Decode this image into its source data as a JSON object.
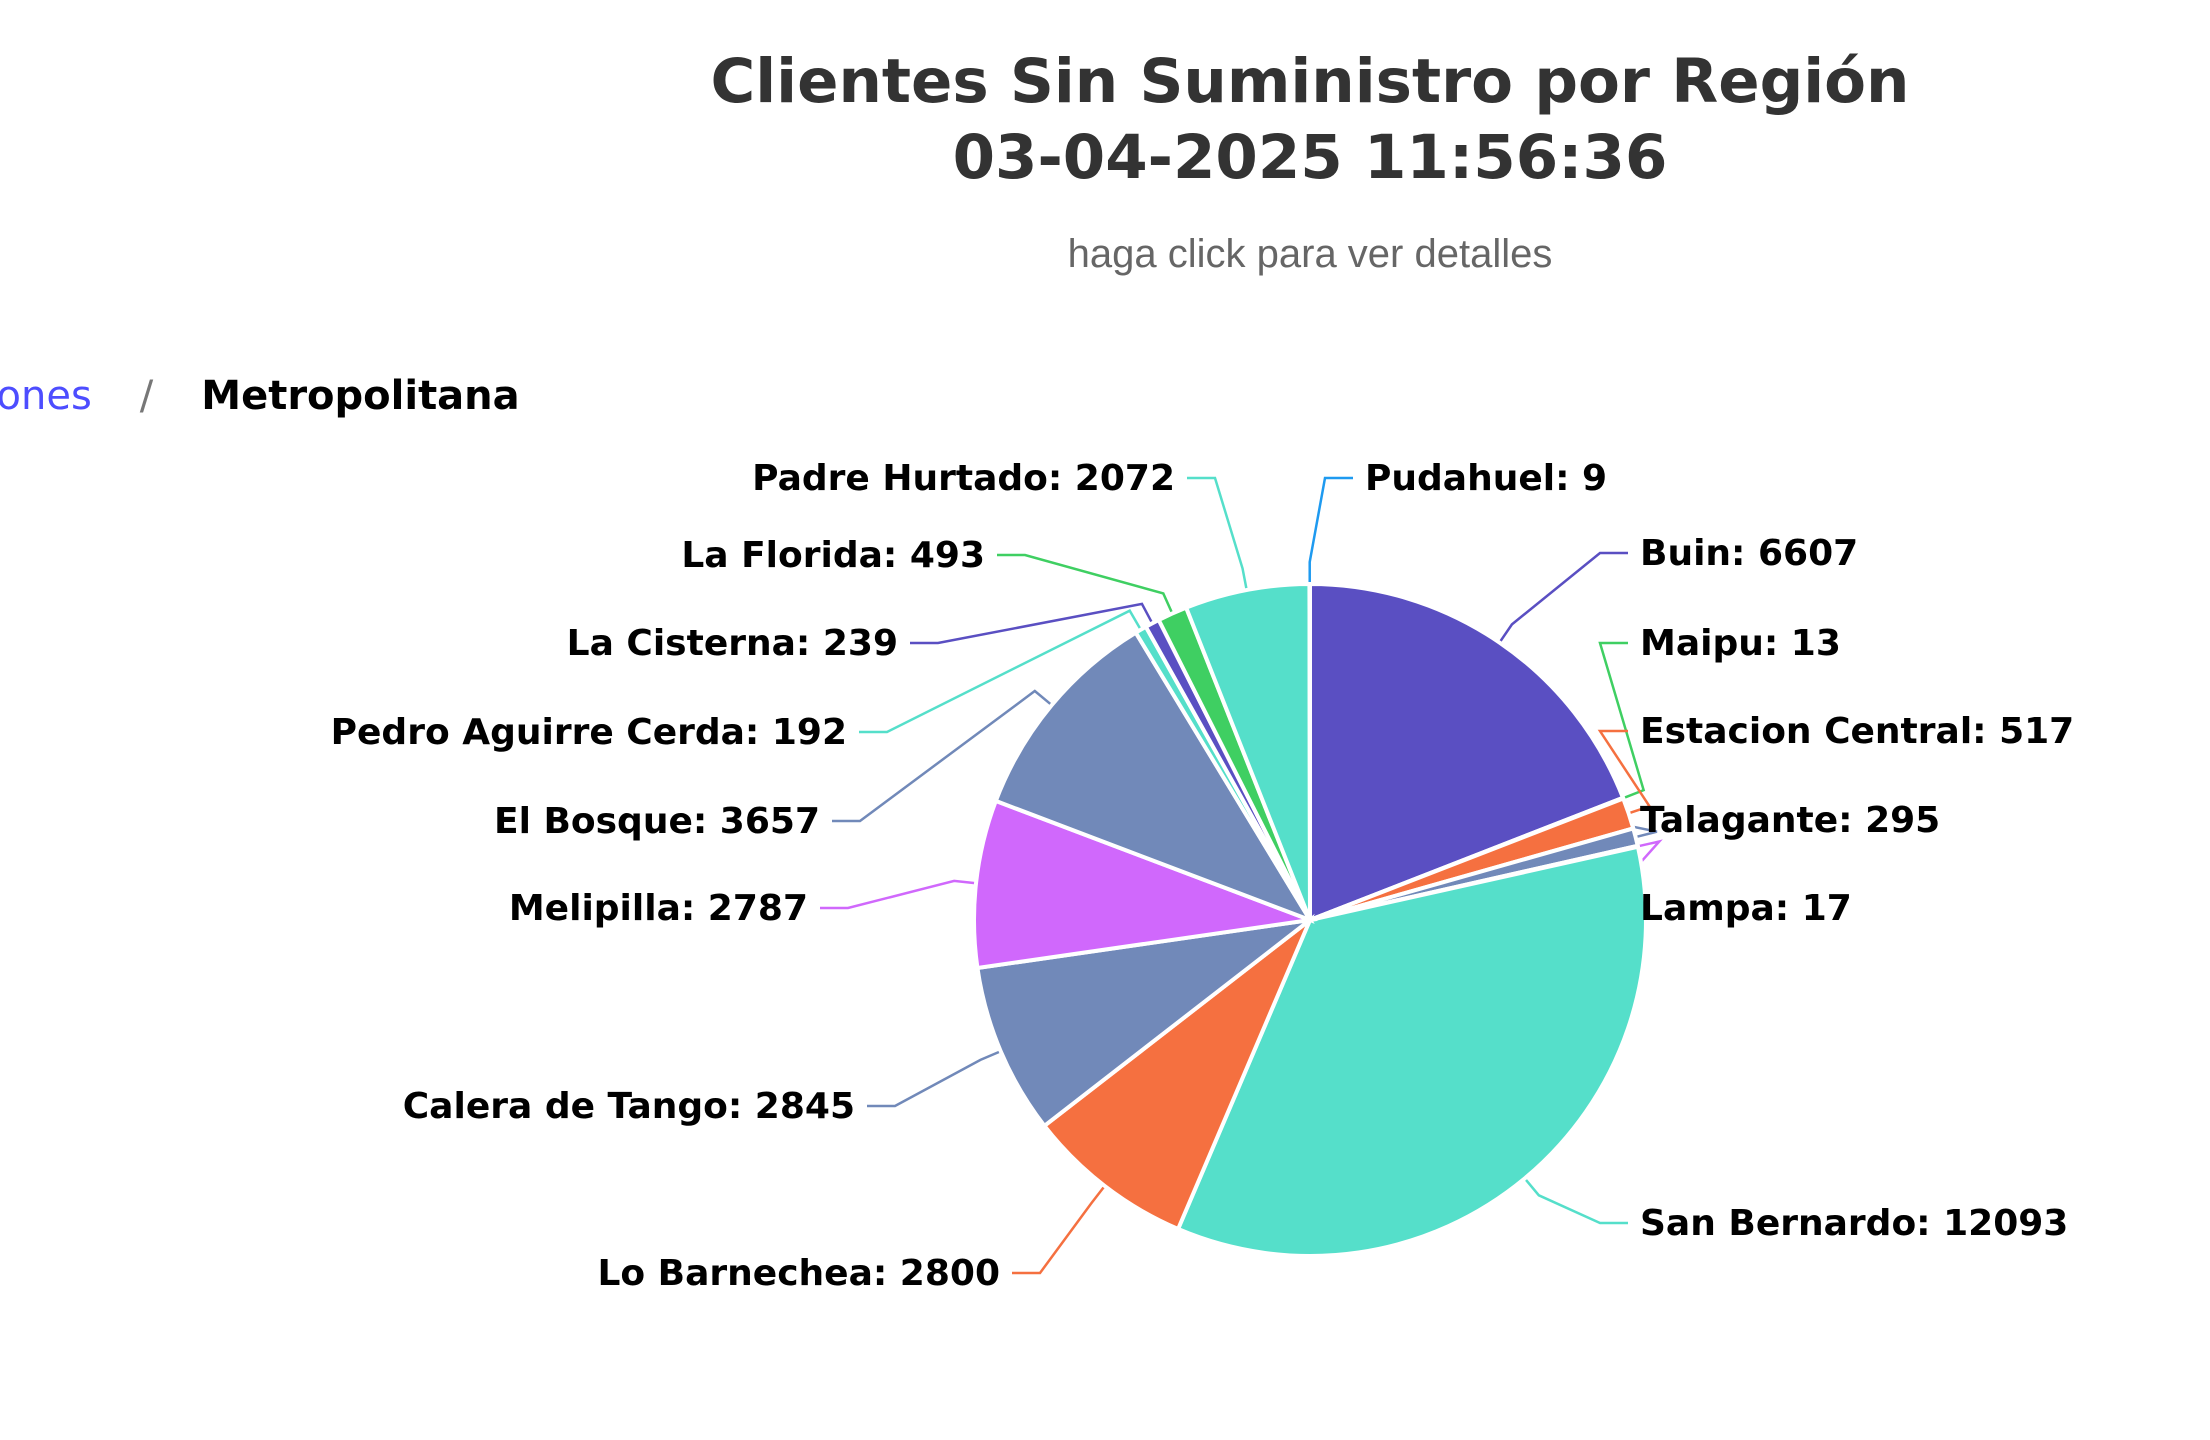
{
  "chart_data": {
    "type": "pie",
    "title_lines": [
      "Clientes Sin Suministro por Región",
      "03-04-2025 11:56:36"
    ],
    "subtitle": "haga click para ver detalles",
    "label_separator": ": ",
    "slices": [
      {
        "name": "Buin",
        "value": 6607,
        "color": "#5a4fc2"
      },
      {
        "name": "Maipu",
        "value": 13,
        "color": "#3fcf62"
      },
      {
        "name": "Estacion Central",
        "value": 517,
        "color": "#f57040"
      },
      {
        "name": "Talagante",
        "value": 295,
        "color": "#7189b9"
      },
      {
        "name": "Lampa",
        "value": 17,
        "color": "#d068fc"
      },
      {
        "name": "San Bernardo",
        "value": 12093,
        "color": "#55dfca"
      },
      {
        "name": "Lo Barnechea",
        "value": 2800,
        "color": "#f57040"
      },
      {
        "name": "Calera de Tango",
        "value": 2845,
        "color": "#7189b9"
      },
      {
        "name": "Melipilla",
        "value": 2787,
        "color": "#d068fc"
      },
      {
        "name": "El Bosque",
        "value": 3657,
        "color": "#7189b9"
      },
      {
        "name": "Pedro Aguirre Cerda",
        "value": 192,
        "color": "#55dfca"
      },
      {
        "name": "La Cisterna",
        "value": 239,
        "color": "#5a4fc2"
      },
      {
        "name": "La Florida",
        "value": 493,
        "color": "#3fcf62"
      },
      {
        "name": "Padre Hurtado",
        "value": 2072,
        "color": "#55dfca"
      },
      {
        "name": "Pudahuel",
        "value": 9,
        "color": "#1e9af0"
      }
    ]
  },
  "breadcrumb": {
    "parent": "giones",
    "separator": "/",
    "current": "Metropolitana"
  }
}
